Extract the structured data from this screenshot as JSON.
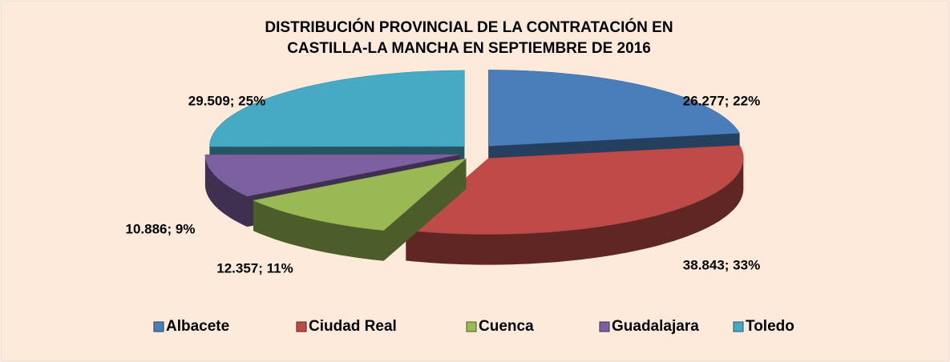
{
  "chart_data": {
    "type": "pie3d",
    "title": "DISTRIBUCIÓN PROVINCIAL DE LA CONTRATACIÓN EN",
    "subtitle": "CASTILLA-LA MANCHA EN SEPTIEMBRE DE 2016",
    "categories": [
      "Albacete",
      "Ciudad Real",
      "Cuenca",
      "Guadalajara",
      "Toledo"
    ],
    "values": [
      26277,
      38843,
      12357,
      10886,
      29509
    ],
    "value_labels": [
      "26.277; 22%",
      "38.843; 33%",
      "12.357; 11%",
      "10.886; 9%",
      "29.509; 25%"
    ],
    "colors": [
      "#4a7ebb",
      "#be4b48",
      "#98b954",
      "#7d60a0",
      "#46aac5"
    ],
    "legend": "bottom"
  }
}
